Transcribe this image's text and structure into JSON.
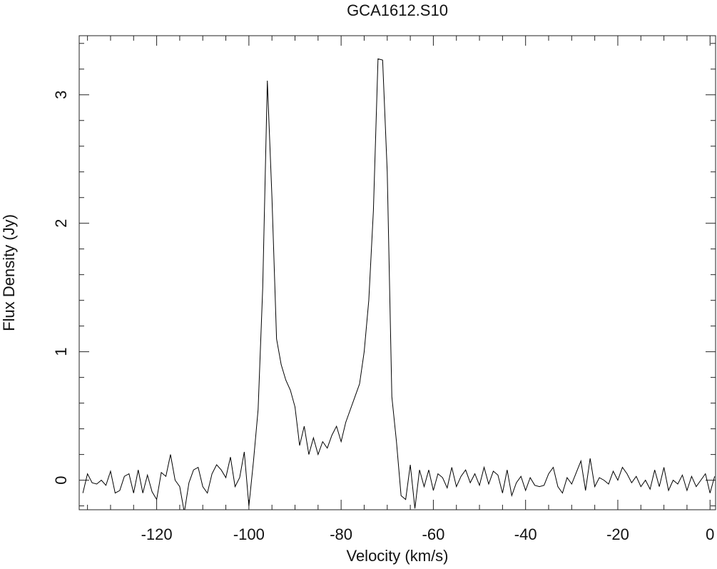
{
  "chart_data": {
    "type": "line",
    "title": "GCA1612.S10",
    "x_label": "Velocity (km/s)",
    "y_label": "Flux Density (Jy)",
    "color": "#000000",
    "xlim": [
      -136.8,
      1.2
    ],
    "ylim": [
      -0.23,
      3.46
    ],
    "xticks": [
      -120,
      -100,
      -80,
      -60,
      -40,
      -20,
      0
    ],
    "yticks": [
      0,
      1,
      2,
      3
    ],
    "xminorticks": [
      -135,
      -130,
      -125,
      -115,
      -110,
      -105,
      -95,
      -90,
      -85,
      -75,
      -70,
      -65,
      -55,
      -50,
      -45,
      -35,
      -30,
      -25,
      -15,
      -10,
      -5
    ],
    "yminorticks": [
      -0.2,
      0.2,
      0.4,
      0.6,
      0.8,
      1.2,
      1.4,
      1.6,
      1.8,
      2.2,
      2.4,
      2.6,
      2.8,
      3.2,
      3.4
    ],
    "x": [
      -136,
      -135,
      -134,
      -133,
      -132,
      -131,
      -130,
      -129,
      -128,
      -127,
      -126,
      -125,
      -124,
      -123,
      -122,
      -121,
      -120,
      -119,
      -118,
      -117,
      -116,
      -115,
      -114,
      -113,
      -112,
      -111,
      -110,
      -109,
      -108,
      -107,
      -106,
      -105,
      -104,
      -103,
      -102,
      -101,
      -100,
      -99,
      -98,
      -97,
      -96,
      -95,
      -94,
      -93,
      -92,
      -91,
      -90,
      -89,
      -88,
      -87,
      -86,
      -85,
      -84,
      -83,
      -82,
      -81,
      -80,
      -79,
      -78,
      -77,
      -76,
      -75,
      -74,
      -73,
      -72,
      -71,
      -70,
      -69,
      -68,
      -67,
      -66,
      -65,
      -64,
      -63,
      -62,
      -61,
      -60,
      -59,
      -58,
      -57,
      -56,
      -55,
      -54,
      -53,
      -52,
      -51,
      -50,
      -49,
      -48,
      -47,
      -46,
      -45,
      -44,
      -43,
      -42,
      -41,
      -40,
      -39,
      -38,
      -37,
      -36,
      -35,
      -34,
      -33,
      -32,
      -31,
      -30,
      -29,
      -28,
      -27,
      -26,
      -25,
      -24,
      -23,
      -22,
      -21,
      -20,
      -19,
      -18,
      -17,
      -16,
      -15,
      -14,
      -13,
      -12,
      -11,
      -10,
      -9,
      -8,
      -7,
      -6,
      -5,
      -4,
      -3,
      -2,
      -1,
      0,
      1
    ],
    "values": [
      -0.1,
      0.05,
      -0.02,
      -0.03,
      0,
      -0.04,
      0.07,
      -0.1,
      -0.08,
      0.03,
      0.05,
      -0.1,
      0.08,
      -0.1,
      0.04,
      -0.09,
      -0.15,
      0.06,
      0.03,
      0.2,
      0,
      -0.05,
      -0.25,
      -0.02,
      0.08,
      0.1,
      -0.05,
      -0.1,
      0.05,
      0.12,
      0.08,
      0.02,
      0.18,
      -0.05,
      0.02,
      0.22,
      -0.2,
      0.15,
      0.55,
      1.5,
      3.11,
      2.2,
      1.1,
      0.9,
      0.78,
      0.7,
      0.57,
      0.27,
      0.42,
      0.2,
      0.33,
      0.2,
      0.3,
      0.25,
      0.35,
      0.42,
      0.3,
      0.45,
      0.55,
      0.65,
      0.75,
      1.0,
      1.4,
      2.1,
      3.28,
      3.27,
      2.4,
      0.65,
      0.3,
      -0.12,
      -0.15,
      0.12,
      -0.22,
      0.08,
      -0.05,
      0.08,
      -0.08,
      0.05,
      0.02,
      -0.06,
      0.1,
      -0.05,
      0.03,
      0.08,
      -0.02,
      0.05,
      -0.04,
      0.1,
      -0.03,
      0.07,
      0.04,
      -0.1,
      0.08,
      -0.12,
      -0.02,
      0.03,
      -0.08,
      0.02,
      -0.04,
      -0.05,
      -0.04,
      0.05,
      0.1,
      -0.05,
      -0.1,
      0.02,
      -0.03,
      0.06,
      0.15,
      -0.08,
      0.17,
      -0.05,
      0.02,
      0,
      -0.03,
      0.07,
      0,
      0.1,
      0.05,
      -0.02,
      0.03,
      -0.05,
      0,
      -0.07,
      0.08,
      -0.05,
      0.1,
      -0.08,
      0,
      -0.03,
      0.04,
      -0.08,
      0.03,
      -0.05,
      0,
      0.05,
      -0.1,
      0.03
    ]
  }
}
